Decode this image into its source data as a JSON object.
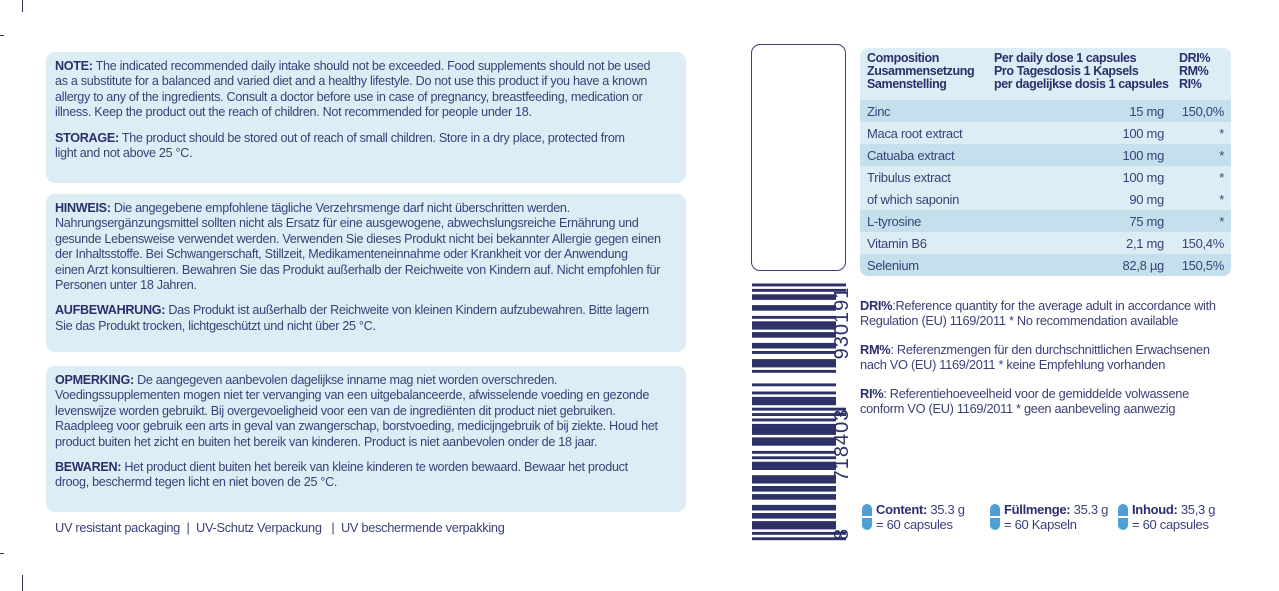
{
  "colors": {
    "text": "#3b4178",
    "panel": "#dcedf5",
    "row_dark": "#c4e0ec",
    "capsule": "#4d9fd6",
    "barcode": "#2d3168"
  },
  "panels": [
    {
      "paragraphs": [
        {
          "label": "NOTE:",
          "lines": [
            " The indicated recommended daily intake should not be exceeded. Food supplements should not be used",
            "as a substitute for a balanced and varied diet and a healthy lifestyle. Do not use this product if you have a known",
            "allergy to any of the ingredients. Consult a doctor before use in case of pregnancy, breastfeeding, medication or",
            "illness. Keep the product out the reach of children. Not recommended for people under 18."
          ]
        },
        {
          "label": "STORAGE:",
          "lines": [
            " The product should be stored out of reach of small children. Store in a dry place, protected from",
            "light and not above 25 °C."
          ]
        }
      ]
    },
    {
      "paragraphs": [
        {
          "label": "HINWEIS:",
          "lines": [
            " Die angegebene empfohlene tägliche Verzehrsmenge darf nicht überschritten werden.",
            "Nahrungsergänzungsmittel sollten nicht als Ersatz für eine ausgewogene, abwechslungsreiche Ernährung und",
            "gesunde Lebensweise verwendet werden. Verwenden Sie dieses Produkt nicht bei bekannter Allergie gegen einen",
            "der Inhaltsstoffe. Bei Schwangerschaft, Stillzeit, Medikamenteneinnahme oder Krankheit vor der Anwendung",
            "einen Arzt konsultieren. Bewahren Sie das Produkt außerhalb der Reichweite von Kindern auf. Nicht empfohlen für",
            "Personen unter 18 Jahren."
          ]
        },
        {
          "label": "AUFBEWAHRUNG:",
          "lines": [
            " Das Produkt ist außerhalb der Reichweite von kleinen Kindern aufzubewahren. Bitte lagern",
            "Sie das Produkt trocken, lichtgeschützt und nicht über 25 °C."
          ]
        }
      ]
    },
    {
      "paragraphs": [
        {
          "label": "OPMERKING:",
          "lines": [
            " De aangegeven aanbevolen dagelijkse inname mag niet worden overschreden.",
            "Voedingssupplementen mogen niet ter vervanging van een uitgebalanceerde, afwisselende voeding en gezonde",
            "levenswijze worden gebruikt. Bij overgevoeligheid voor een van de ingrediënten dit product niet gebruiken.",
            "Raadpleeg voor gebruik een arts in geval van zwangerschap, borstvoeding, medicijngebruik of bij ziekte. Houd het",
            "product buiten het zicht en buiten het bereik van kinderen. Product is niet aanbevolen onder de 18 jaar."
          ]
        },
        {
          "label": "BEWAREN:",
          "lines": [
            " Het product dient buiten het bereik van kleine kinderen te worden bewaard. Bewaar het product",
            "droog, beschermd tegen licht en niet boven de 25 °C."
          ]
        }
      ]
    }
  ],
  "footer": "UV resistant packaging  |  UV-Schutz Verpackung   |  UV beschermende verpakking",
  "barcode": {
    "digits": "8718403930191",
    "first": "8",
    "left": "718403",
    "right": "930191"
  },
  "table": {
    "header": {
      "col1": [
        "Composition",
        "Zusammensetzung",
        "Samenstelling"
      ],
      "col2": [
        "Per daily dose 1 capsules",
        "Pro Tagesdosis 1 Kapsels",
        "per dagelijkse dosis 1 capsules"
      ],
      "col3": [
        "DRI%",
        "RM%",
        "RI%"
      ]
    },
    "rows": [
      {
        "name": "Zinc",
        "amount": "15 mg",
        "pct": "150,0%"
      },
      {
        "name": "Maca root extract",
        "amount": "100 mg",
        "pct": "*"
      },
      {
        "name": "Catuaba extract",
        "amount": "100 mg",
        "pct": "*"
      },
      {
        "name": "Tribulus extract",
        "amount": "100 mg",
        "pct": "*"
      },
      {
        "name": "of which saponin",
        "amount": "90 mg",
        "pct": "*"
      },
      {
        "name": "L-tyrosine",
        "amount": "75 mg",
        "pct": "*"
      },
      {
        "name": "Vitamin B6",
        "amount": "2,1 mg",
        "pct": "150,4%"
      },
      {
        "name": "Selenium",
        "amount": "82,8 µg",
        "pct": "150,5%"
      }
    ]
  },
  "notes": [
    {
      "label": "DRI%",
      "text": ":Reference quantity for the average adult in accordance with Regulation (EU) 1169/2011 * No recommendation available"
    },
    {
      "label": "RM%",
      "text": ": Referenzmengen für den durchschnittlichen Erwachsenen nach VO (EU) 1169/2011 * keine Empfehlung vorhanden"
    },
    {
      "label": "RI%",
      "text": ": Referentiehoeveelheid voor de gemiddelde volwassene conform VO (EU) 1169/2011 * geen aanbeveling aanwezig"
    }
  ],
  "contents": [
    {
      "label": "Content:",
      "value": " 35.3 g",
      "sub": "= 60 capsules",
      "icon": "capsule-icon"
    },
    {
      "label": "Füllmenge:",
      "value": " 35.3 g",
      "sub": "= 60 Kapseln",
      "icon": "capsule-icon"
    },
    {
      "label": "Inhoud:",
      "value": " 35,3 g",
      "sub": "= 60 capsules",
      "icon": "capsule-icon"
    }
  ]
}
